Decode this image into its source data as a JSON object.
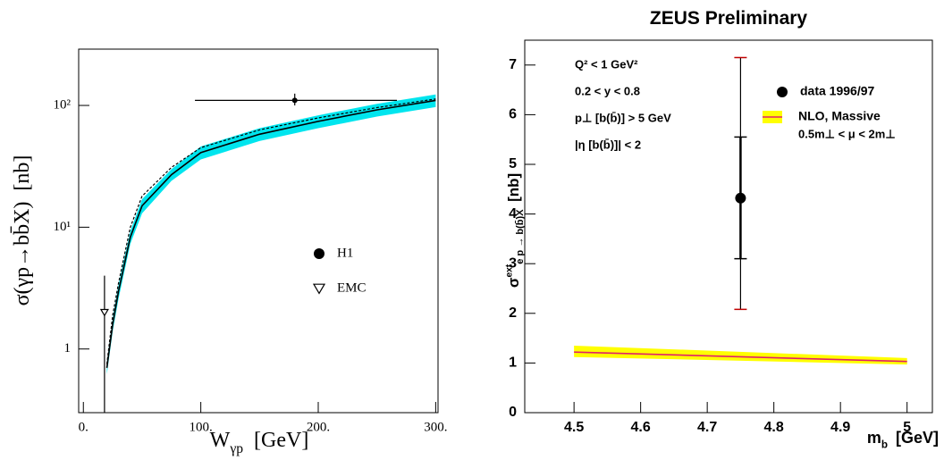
{
  "chart_data": [
    {
      "type": "line",
      "ylog": true,
      "xlabel": {
        "text": "W",
        "sub": "γp",
        "unit": "[GeV]"
      },
      "ylabel": {
        "text": "σ(γp→bb̄X)",
        "unit": "[nb]"
      },
      "xlim": [
        -4,
        302
      ],
      "ylim": [
        0.3,
        290
      ],
      "xticks": [
        {
          "value": 0,
          "label": "0."
        },
        {
          "value": 100,
          "label": "100."
        },
        {
          "value": 200,
          "label": "200."
        },
        {
          "value": 300,
          "label": "300."
        }
      ],
      "yticks": [
        1,
        {
          "value": 10,
          "label": "10¹"
        },
        {
          "value": 100,
          "label": "10²"
        }
      ],
      "x": [
        20,
        25,
        30,
        40,
        50,
        75,
        100,
        150,
        200,
        250,
        300
      ],
      "series": [
        {
          "color": "#000000",
          "fill": "#00e5ee",
          "values": [
            0.7,
            1.6,
            3.0,
            8.3,
            15,
            27,
            41,
            58,
            74,
            92,
            110
          ],
          "lower": [
            0.62,
            1.4,
            2.6,
            7.3,
            13,
            24,
            36,
            51,
            65,
            81,
            97
          ],
          "upper": [
            0.78,
            1.8,
            3.4,
            9.3,
            17,
            30,
            46,
            65,
            83,
            103,
            123
          ]
        },
        {
          "color": "#000000",
          "dash": true,
          "values": [
            0.75,
            1.9,
            3.5,
            10,
            18,
            31,
            45,
            63,
            79,
            96,
            113
          ]
        }
      ],
      "points": [
        {
          "name": "H1",
          "marker": "circle",
          "color": "#000000",
          "x": 180,
          "y": 110,
          "xerr": [
            95,
            267
          ],
          "yerr": [
            100,
            125
          ]
        },
        {
          "name": "EMC",
          "marker": "triangle-open",
          "color": "#000000",
          "x": 18,
          "y": 2,
          "yerr": [
            0.3,
            4
          ]
        }
      ]
    },
    {
      "type": "line",
      "ylog": false,
      "title": "ZEUS Preliminary",
      "xlabel": {
        "text": "m",
        "sub": "b",
        "unit": "[GeV]"
      },
      "ylabel": {
        "text": "σ",
        "sup": "ext",
        "sub": "e p → b(b̄)X",
        "unit": "[nb]"
      },
      "xlim": [
        4.426,
        5.038
      ],
      "ylim": [
        0,
        7.5
      ],
      "xticks": [
        4.5,
        4.6,
        4.7,
        4.8,
        4.9,
        5
      ],
      "yticks": [
        0,
        1,
        2,
        3,
        4,
        5,
        6,
        7
      ],
      "x": [
        4.5,
        5
      ],
      "series": [
        {
          "name": "NLO, Massive",
          "note": "0.5m⊥ < μ < 2m⊥",
          "color": "#e0206a",
          "fill": "#ffff00",
          "values": [
            1.22,
            1.03
          ],
          "lower": [
            1.12,
            0.97
          ],
          "upper": [
            1.35,
            1.1
          ]
        }
      ],
      "points": [
        {
          "name": "data 1996/97",
          "marker": "circle",
          "color": "#000000",
          "cap_color": "#c00000",
          "x": 4.75,
          "y": 4.32,
          "yerr": [
            3.1,
            5.55
          ],
          "yerr_total": [
            2.08,
            7.15
          ]
        }
      ],
      "annotations": [
        "Q² < 1 GeV²",
        "0.2 < y < 0.8",
        "p⊥ [b(b̄)] > 5 GeV",
        "|η [b(b̄)]| < 2"
      ]
    }
  ]
}
